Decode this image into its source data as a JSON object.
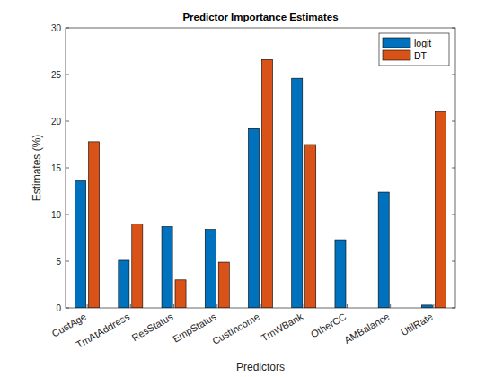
{
  "chart_data": {
    "type": "bar",
    "title": "Predictor Importance Estimates",
    "x_label": "Predictors",
    "y_label": "Estimates (%)",
    "categories": [
      "CustAge",
      "TmAtAddress",
      "ResStatus",
      "EmpStatus",
      "CustIncome",
      "TmWBank",
      "OtherCC",
      "AMBalance",
      "UtilRate"
    ],
    "series": [
      {
        "name": "logit",
        "color": "#0072bd",
        "values": [
          13.6,
          5.1,
          8.7,
          8.4,
          19.2,
          24.6,
          7.3,
          12.4,
          0.3
        ]
      },
      {
        "name": "DT",
        "color": "#d95319",
        "values": [
          17.8,
          9.0,
          3.0,
          4.9,
          26.6,
          17.5,
          0,
          0,
          21.0
        ]
      }
    ],
    "ylim": [
      0,
      30
    ],
    "yticks": [
      0,
      5,
      10,
      15,
      20,
      25,
      30
    ],
    "grid": false,
    "legend": "top-right"
  }
}
